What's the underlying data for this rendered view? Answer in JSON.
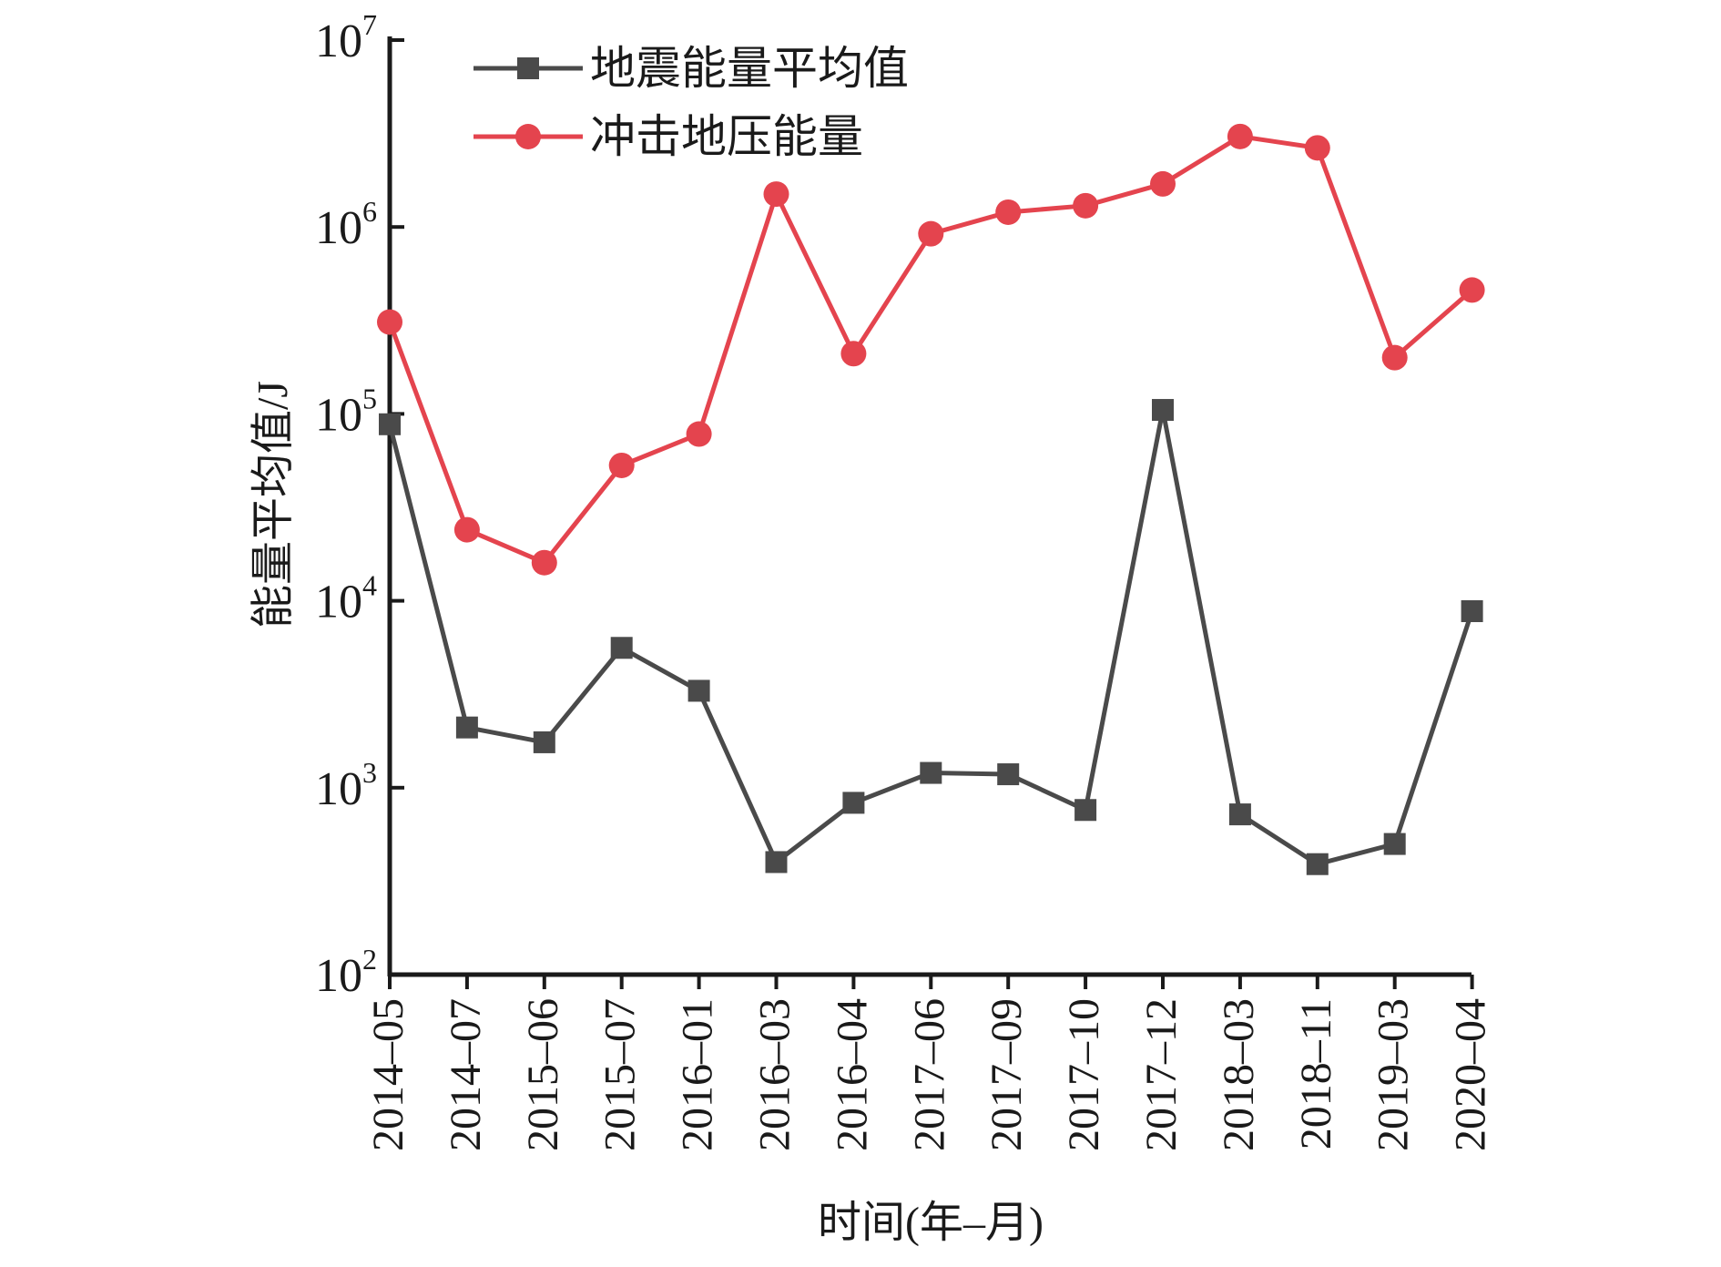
{
  "chart_data": {
    "type": "line",
    "title": "",
    "xlabel": "时间(年–月)",
    "ylabel": "能量平均值/J",
    "y_scale": "log",
    "ylim": [
      100,
      10000000
    ],
    "y_ticks": [
      {
        "value": 100,
        "base": "10",
        "exp": "2"
      },
      {
        "value": 1000,
        "base": "10",
        "exp": "3"
      },
      {
        "value": 10000,
        "base": "10",
        "exp": "4"
      },
      {
        "value": 100000,
        "base": "10",
        "exp": "5"
      },
      {
        "value": 1000000,
        "base": "10",
        "exp": "6"
      },
      {
        "value": 10000000,
        "base": "10",
        "exp": "7"
      }
    ],
    "categories": [
      "2014–05",
      "2014–07",
      "2015–06",
      "2015–07",
      "2016–01",
      "2016–03",
      "2016–04",
      "2017–06",
      "2017–09",
      "2017–10",
      "2017–12",
      "2018–03",
      "2018–11",
      "2019–03",
      "2020–04"
    ],
    "grid": false,
    "legend_position": "top-left",
    "series": [
      {
        "name": "地震能量平均值",
        "marker": "square",
        "color": "#4a4a4a",
        "values": [
          88000,
          2100,
          1750,
          5600,
          3300,
          400,
          830,
          1200,
          1180,
          760,
          105000,
          720,
          390,
          500,
          8800
        ]
      },
      {
        "name": "冲击地压能量",
        "marker": "circle",
        "color": "#e4444e",
        "values": [
          310000,
          24000,
          16000,
          53000,
          78000,
          1500000,
          210000,
          920000,
          1200000,
          1300000,
          1700000,
          3050000,
          2650000,
          200000,
          460000
        ]
      }
    ]
  }
}
